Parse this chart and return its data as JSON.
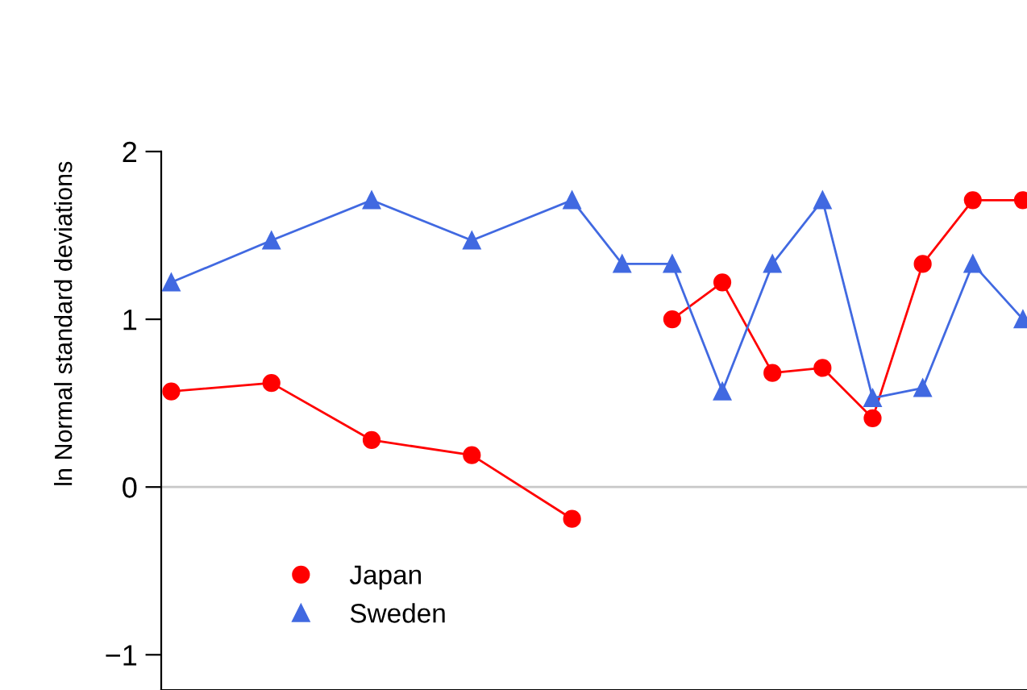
{
  "chart_data": {
    "type": "line",
    "ylabel": "ln Normal standard deviations",
    "categories": [
      null,
      null,
      null,
      null,
      null,
      null,
      null,
      null,
      null,
      null,
      null,
      null,
      null,
      null,
      null,
      null,
      null,
      null
    ],
    "series": [
      {
        "name": "Japan",
        "color": "#ff0000",
        "marker": "circle",
        "values": [
          0.57,
          null,
          0.62,
          null,
          0.28,
          null,
          0.19,
          null,
          -0.19,
          null,
          1.0,
          1.22,
          0.68,
          0.71,
          0.41,
          1.33,
          1.71,
          1.71
        ]
      },
      {
        "name": "Sweden",
        "color": "#4169e1",
        "marker": "triangle",
        "values": [
          1.22,
          null,
          1.47,
          null,
          1.71,
          null,
          1.47,
          null,
          1.71,
          1.33,
          1.33,
          0.57,
          1.33,
          1.71,
          0.53,
          0.59,
          1.33,
          1.0
        ]
      }
    ],
    "ylim": [
      -1.21,
      2
    ],
    "yticks": [
      {
        "value": -1,
        "label": "−1"
      },
      0,
      1,
      2
    ],
    "ref_lines": [
      {
        "axis": "y",
        "value": 0,
        "color": "#c8c8c8"
      }
    ],
    "tick_labels": "y",
    "grid": false,
    "legend": "bottom left",
    "line_style": "solid"
  }
}
